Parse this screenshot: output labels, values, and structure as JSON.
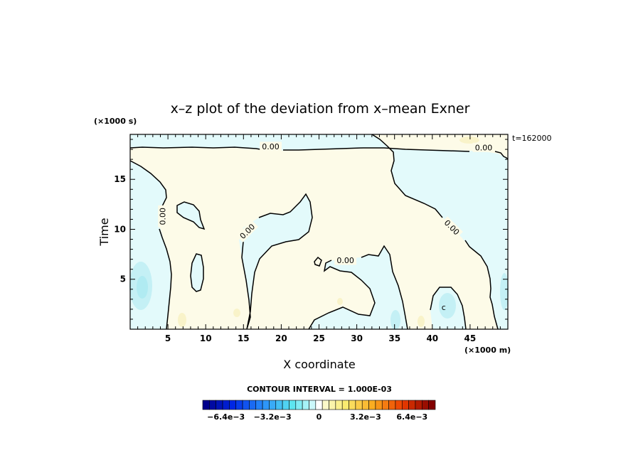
{
  "chart_data": {
    "type": "heatmap",
    "title": "x–z plot of the deviation from x–mean Exner",
    "xlabel": "X coordinate",
    "ylabel": "Time",
    "x_unit": "(×1000 m)",
    "y_unit": "(×1000 s)",
    "time_label": "t=162000",
    "xlim": [
      0,
      50
    ],
    "ylim": [
      0,
      19.5
    ],
    "xticks": [
      5,
      10,
      15,
      20,
      25,
      30,
      35,
      40,
      45
    ],
    "xtick_labels": [
      "5",
      "10",
      "15",
      "20",
      "25",
      "30",
      "35",
      "40",
      "45"
    ],
    "yticks": [
      5,
      10,
      15
    ],
    "ytick_labels": [
      "5",
      "10",
      "15"
    ],
    "contour_labels": [
      {
        "text": "0.00",
        "x": 18.6,
        "y": 18.3,
        "angle": 0
      },
      {
        "text": "0.00",
        "x": 46.8,
        "y": 18.2,
        "angle": 0
      },
      {
        "text": "0.00",
        "x": 4.3,
        "y": 11.3,
        "angle": -90
      },
      {
        "text": "0.00",
        "x": 15.5,
        "y": 9.8,
        "angle": -45
      },
      {
        "text": "0.00",
        "x": 28.5,
        "y": 6.9,
        "angle": 0
      },
      {
        "text": "0.00",
        "x": 42.6,
        "y": 10.2,
        "angle": 45
      },
      {
        "text": "c",
        "x": 41.5,
        "y": 2.2,
        "angle": 0
      }
    ],
    "contour_interval_text": "CONTOUR INTERVAL = 1.000E-03",
    "colorbar": {
      "min": -0.008,
      "max": 0.008,
      "levels": 35,
      "tick_labels": [
        "−6.4e−3",
        "−3.2e−3",
        "0",
        "3.2e−3",
        "6.4e−3"
      ],
      "tick_values": [
        -0.0064,
        -0.0032,
        0,
        0.0032,
        0.0064
      ]
    }
  }
}
